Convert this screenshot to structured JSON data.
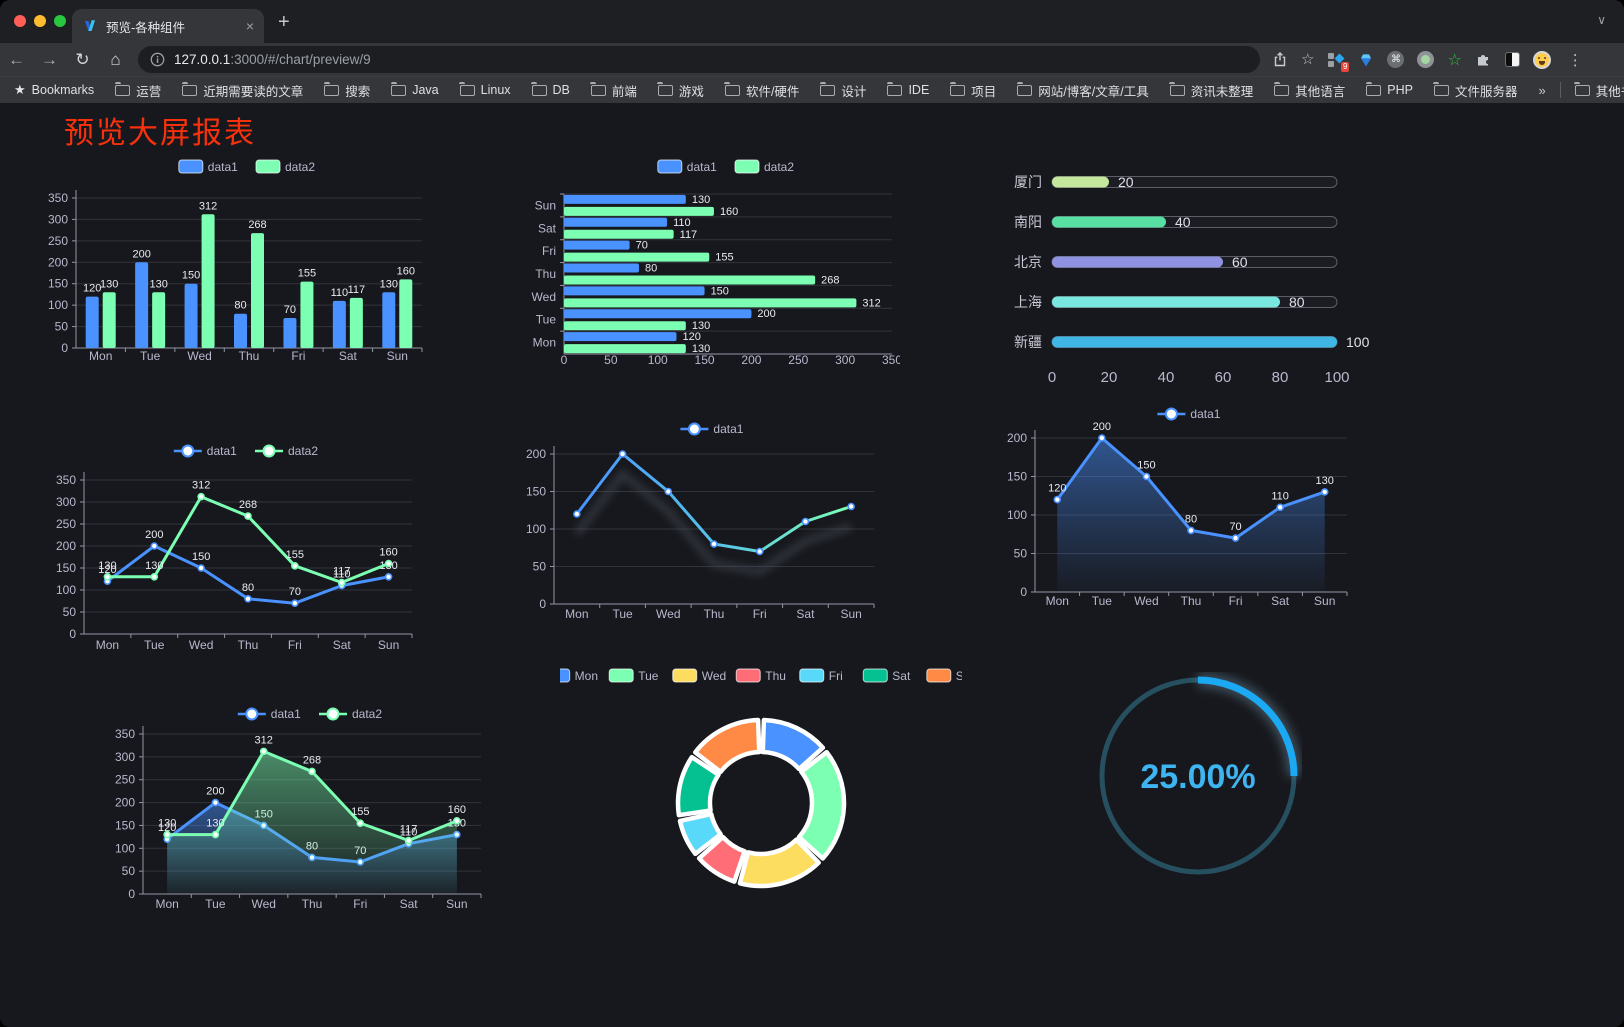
{
  "browser": {
    "tab": {
      "title": "预览-各种组件"
    },
    "icons": {
      "close": "×",
      "new_tab": "+",
      "chevron": "∨",
      "back": "←",
      "forward": "→",
      "reload": "↻",
      "home": "⌂",
      "star": "☆",
      "bookmark_star": "★",
      "menu": "⋮",
      "overflow": "»",
      "command": "⌘"
    },
    "url": {
      "host": "127.0.0.1",
      "path": ":3000/#/chart/preview/9"
    },
    "extension_badge": "9",
    "bookmarks_label": "Bookmarks",
    "bookmarks": [
      "运营",
      "近期需要读的文章",
      "搜索",
      "Java",
      "Linux",
      "DB",
      "前端",
      "游戏",
      "软件/硬件",
      "设计",
      "IDE",
      "项目",
      "网站/博客/文章/工具",
      "资讯未整理",
      "其他语言",
      "PHP",
      "文件服务器"
    ],
    "other_bookmarks": "其他书签"
  },
  "page": {
    "title": "预览大屏报表",
    "title_color": "#f7310c"
  },
  "chart_data": [
    {
      "type": "bar",
      "categories": [
        "Mon",
        "Tue",
        "Wed",
        "Thu",
        "Fri",
        "Sat",
        "Sun"
      ],
      "series": [
        {
          "name": "data1",
          "color": "#4992ff",
          "values": [
            120,
            200,
            150,
            80,
            70,
            110,
            130
          ]
        },
        {
          "name": "data2",
          "color": "#7cffb2",
          "values": [
            130,
            130,
            312,
            268,
            155,
            117,
            160
          ]
        }
      ],
      "ylim": [
        0,
        350
      ],
      "ystep": 50,
      "grid": true,
      "legend_position": "top",
      "value_labels": true
    },
    {
      "type": "bar_horizontal",
      "categories": [
        "Mon",
        "Tue",
        "Wed",
        "Thu",
        "Fri",
        "Sat",
        "Sun"
      ],
      "categories_order": "bottom_to_top",
      "series": [
        {
          "name": "data1",
          "color": "#4992ff",
          "values": [
            120,
            200,
            150,
            80,
            70,
            110,
            130
          ]
        },
        {
          "name": "data2",
          "color": "#7cffb2",
          "values": [
            130,
            130,
            312,
            268,
            155,
            117,
            160
          ]
        }
      ],
      "xlim": [
        0,
        350
      ],
      "xstep": 50,
      "legend_position": "top",
      "value_labels": true
    },
    {
      "type": "progress_bars",
      "xlim": [
        0,
        100
      ],
      "xticks": [
        0,
        20,
        40,
        60,
        80,
        100
      ],
      "items": [
        {
          "label": "厦门",
          "value": 20,
          "color": "#c3e79c"
        },
        {
          "label": "南阳",
          "value": 40,
          "color": "#58dfa2"
        },
        {
          "label": "北京",
          "value": 60,
          "color": "#8f92e0"
        },
        {
          "label": "上海",
          "value": 80,
          "color": "#7ae6e0"
        },
        {
          "label": "新疆",
          "value": 100,
          "color": "#3fb6e3"
        }
      ]
    },
    {
      "type": "line",
      "categories": [
        "Mon",
        "Tue",
        "Wed",
        "Thu",
        "Fri",
        "Sat",
        "Sun"
      ],
      "series": [
        {
          "name": "data1",
          "color": "#4992ff",
          "values": [
            120,
            200,
            150,
            80,
            70,
            110,
            130
          ]
        },
        {
          "name": "data2",
          "color": "#7cffb2",
          "values": [
            130,
            130,
            312,
            268,
            155,
            117,
            160
          ]
        }
      ],
      "ylim": [
        0,
        350
      ],
      "ystep": 50,
      "markers": true,
      "value_labels": true,
      "legend_position": "top"
    },
    {
      "type": "line",
      "categories": [
        "Mon",
        "Tue",
        "Wed",
        "Thu",
        "Fri",
        "Sat",
        "Sun"
      ],
      "series": [
        {
          "name": "data1",
          "color": "#4992ff",
          "gradient": [
            "#4992ff",
            "#55c3e8",
            "#7cffb2"
          ],
          "shadow": true,
          "values": [
            120,
            200,
            150,
            80,
            70,
            110,
            130
          ]
        }
      ],
      "ylim": [
        0,
        200
      ],
      "ystep": 50,
      "markers": true,
      "value_labels": false,
      "legend_position": "top"
    },
    {
      "type": "line",
      "categories": [
        "Mon",
        "Tue",
        "Wed",
        "Thu",
        "Fri",
        "Sat",
        "Sun"
      ],
      "series": [
        {
          "name": "data1",
          "color": "#4992ff",
          "area": true,
          "values": [
            120,
            200,
            150,
            80,
            70,
            110,
            130
          ]
        }
      ],
      "ylim": [
        0,
        200
      ],
      "ystep": 50,
      "markers": true,
      "value_labels": true,
      "legend_position": "top"
    },
    {
      "type": "line",
      "categories": [
        "Mon",
        "Tue",
        "Wed",
        "Thu",
        "Fri",
        "Sat",
        "Sun"
      ],
      "series": [
        {
          "name": "data1",
          "color": "#4992ff",
          "area": true,
          "values": [
            120,
            200,
            150,
            80,
            70,
            110,
            130
          ]
        },
        {
          "name": "data2",
          "color": "#7cffb2",
          "area": true,
          "values": [
            130,
            130,
            312,
            268,
            155,
            117,
            160
          ]
        }
      ],
      "ylim": [
        0,
        350
      ],
      "ystep": 50,
      "markers": true,
      "value_labels": true,
      "legend_position": "top"
    },
    {
      "type": "pie",
      "donut": true,
      "labels": [
        "Mon",
        "Tue",
        "Wed",
        "Thu",
        "Fri",
        "Sat",
        "Sun"
      ],
      "values": [
        120,
        200,
        150,
        80,
        70,
        110,
        130
      ],
      "colors": [
        "#4992ff",
        "#7cffb2",
        "#fddd60",
        "#ff6e76",
        "#58d9f9",
        "#05c091",
        "#ff8a45"
      ],
      "border_color": "#ffffff",
      "legend_position": "top"
    },
    {
      "type": "gauge",
      "value": 25,
      "max": 100,
      "display": "25.00%",
      "progress_color": "#1aa9f2",
      "track_color": "#26505f",
      "text_color": "#3eb5f1"
    }
  ]
}
